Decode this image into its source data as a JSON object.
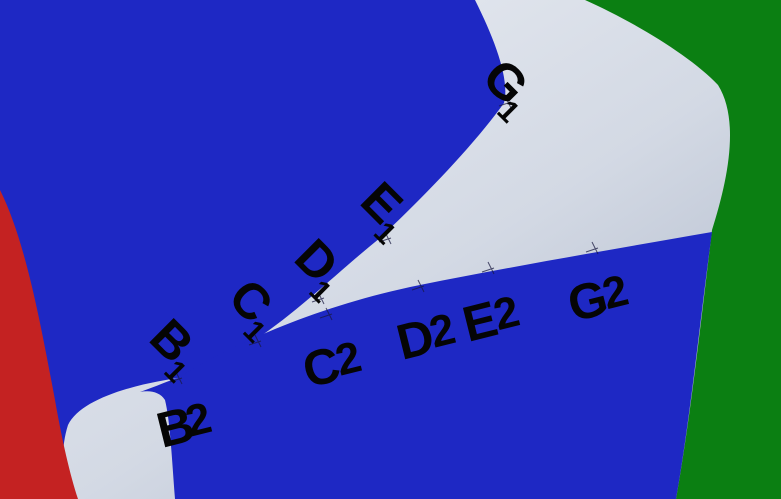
{
  "labels": {
    "g1": {
      "letter": "G",
      "index": "1"
    },
    "e1": {
      "letter": "E",
      "index": "1"
    },
    "d1": {
      "letter": "D",
      "index": "1"
    },
    "c1": {
      "letter": "C",
      "index": "1"
    },
    "b1": {
      "letter": "B",
      "index": "1"
    },
    "b2": {
      "letter": "B",
      "index": "2"
    },
    "c2": {
      "letter": "C",
      "index": "2"
    },
    "d2": {
      "letter": "D",
      "index": "2"
    },
    "e2": {
      "letter": "E",
      "index": "2"
    },
    "g2": {
      "letter": "G",
      "index": "2"
    }
  },
  "colors": {
    "blue_region": "#1e28c4",
    "green_region": "#0b7f12",
    "red_region": "#c42222",
    "gap_light": "#d6dde8",
    "gap_shadow": "#aeb8ca",
    "label_text": "#050505"
  }
}
